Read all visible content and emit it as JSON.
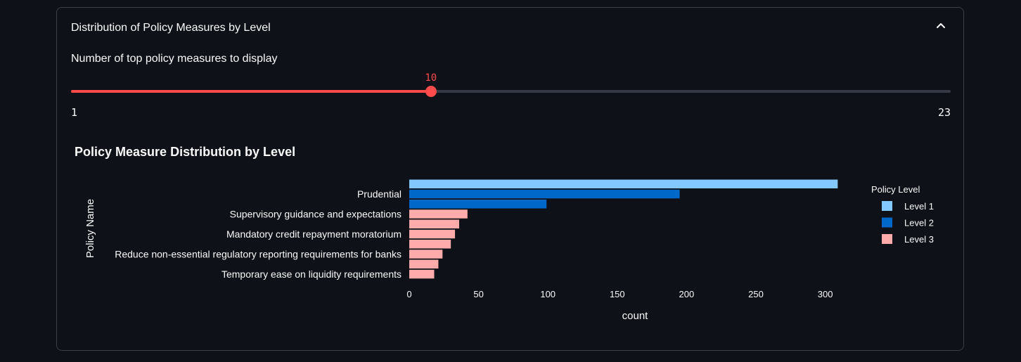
{
  "expander": {
    "title": "Distribution of Policy Measures by Level"
  },
  "slider": {
    "label": "Number of top policy measures to display",
    "value": 10,
    "min": 1,
    "max": 23,
    "value_text": "10",
    "min_text": "1",
    "max_text": "23",
    "accent_color": "#ff4b4b"
  },
  "chart_data": {
    "type": "bar",
    "orientation": "horizontal",
    "title": "Policy Measure Distribution by Level",
    "xlabel": "count",
    "ylabel": "Policy Name",
    "xlim": [
      0,
      310
    ],
    "xticks": [
      0,
      50,
      100,
      150,
      200,
      250,
      300
    ],
    "legend_title": "Policy Level",
    "legend_position": "right",
    "series_colors": {
      "Level 1": "#83c9ff",
      "Level 2": "#0068c9",
      "Level 3": "#ffabab"
    },
    "bars": [
      {
        "category": "",
        "value": 309,
        "level": "Level 1"
      },
      {
        "category": "Prudential",
        "value": 195,
        "level": "Level 2"
      },
      {
        "category": "",
        "value": 99,
        "level": "Level 2"
      },
      {
        "category": "Supervisory guidance and expectations",
        "value": 42,
        "level": "Level 3"
      },
      {
        "category": "",
        "value": 36,
        "level": "Level 3"
      },
      {
        "category": "Mandatory credit repayment moratorium",
        "value": 33,
        "level": "Level 3"
      },
      {
        "category": "",
        "value": 30,
        "level": "Level 3"
      },
      {
        "category": "Reduce non-essential regulatory reporting requirements for banks",
        "value": 24,
        "level": "Level 3"
      },
      {
        "category": "",
        "value": 21,
        "level": "Level 3"
      },
      {
        "category": "Temporary ease on liquidity requirements",
        "value": 18,
        "level": "Level 3"
      }
    ],
    "legend": [
      "Level 1",
      "Level 2",
      "Level 3"
    ]
  }
}
